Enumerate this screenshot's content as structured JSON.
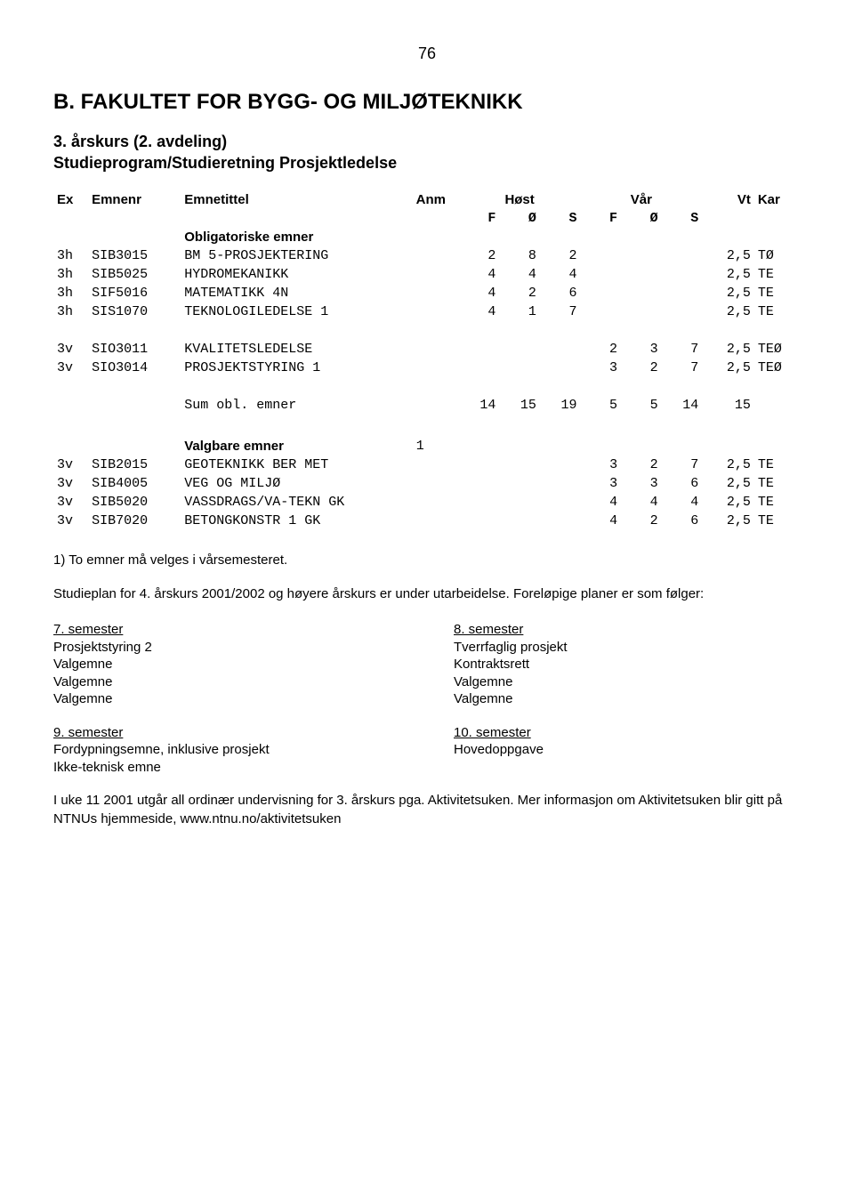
{
  "page_number": "76",
  "heading": "B. FAKULTET FOR BYGG- OG MILJØTEKNIKK",
  "subheading": "3. årskurs (2. avdeling)",
  "program": "Studieprogram/Studieretning Prosjektledelse",
  "columns": {
    "ex": "Ex",
    "emnenr": "Emnenr",
    "emnetittel": "Emnetittel",
    "anm": "Anm",
    "host": "Høst",
    "var": "Vår",
    "f": "F",
    "o": "Ø",
    "s": "S",
    "vt": "Vt",
    "kar": "Kar"
  },
  "sections": {
    "oblig": "Obligatoriske emner",
    "valgbare": "Valgbare emner"
  },
  "oblig_rows": [
    {
      "lvl": "3h",
      "code": "SIB3015",
      "title": "BM 5-PROSJEKTERING",
      "anm": "",
      "hf": "2",
      "ho": "8",
      "hs": "2",
      "vf": "",
      "vo": "",
      "vs": "",
      "vt": "2,5",
      "kar": "TØ"
    },
    {
      "lvl": "3h",
      "code": "SIB5025",
      "title": "HYDROMEKANIKK",
      "anm": "",
      "hf": "4",
      "ho": "4",
      "hs": "4",
      "vf": "",
      "vo": "",
      "vs": "",
      "vt": "2,5",
      "kar": "TE"
    },
    {
      "lvl": "3h",
      "code": "SIF5016",
      "title": "MATEMATIKK 4N",
      "anm": "",
      "hf": "4",
      "ho": "2",
      "hs": "6",
      "vf": "",
      "vo": "",
      "vs": "",
      "vt": "2,5",
      "kar": "TE"
    },
    {
      "lvl": "3h",
      "code": "SIS1070",
      "title": "TEKNOLOGILEDELSE 1",
      "anm": "",
      "hf": "4",
      "ho": "1",
      "hs": "7",
      "vf": "",
      "vo": "",
      "vs": "",
      "vt": "2,5",
      "kar": "TE"
    }
  ],
  "oblig_rows2": [
    {
      "lvl": "3v",
      "code": "SIO3011",
      "title": "KVALITETSLEDELSE",
      "anm": "",
      "hf": "",
      "ho": "",
      "hs": "",
      "vf": "2",
      "vo": "3",
      "vs": "7",
      "vt": "2,5",
      "kar": "TEØ"
    },
    {
      "lvl": "3v",
      "code": "SIO3014",
      "title": "PROSJEKTSTYRING 1",
      "anm": "",
      "hf": "",
      "ho": "",
      "hs": "",
      "vf": "3",
      "vo": "2",
      "vs": "7",
      "vt": "2,5",
      "kar": "TEØ"
    }
  ],
  "sum_row": {
    "title": "Sum obl. emner",
    "hf": "14",
    "ho": "15",
    "hs": "19",
    "vf": "5",
    "vo": "5",
    "vs": "14",
    "vt": "15"
  },
  "valgbare_anm": "1",
  "valgbare_rows": [
    {
      "lvl": "3v",
      "code": "SIB2015",
      "title": "GEOTEKNIKK BER MET",
      "anm": "",
      "hf": "",
      "ho": "",
      "hs": "",
      "vf": "3",
      "vo": "2",
      "vs": "7",
      "vt": "2,5",
      "kar": "TE"
    },
    {
      "lvl": "3v",
      "code": "SIB4005",
      "title": "VEG OG MILJØ",
      "anm": "",
      "hf": "",
      "ho": "",
      "hs": "",
      "vf": "3",
      "vo": "3",
      "vs": "6",
      "vt": "2,5",
      "kar": "TE"
    },
    {
      "lvl": "3v",
      "code": "SIB5020",
      "title": "VASSDRAGS/VA-TEKN GK",
      "anm": "",
      "hf": "",
      "ho": "",
      "hs": "",
      "vf": "4",
      "vo": "4",
      "vs": "4",
      "vt": "2,5",
      "kar": "TE"
    },
    {
      "lvl": "3v",
      "code": "SIB7020",
      "title": "BETONGKONSTR 1 GK",
      "anm": "",
      "hf": "",
      "ho": "",
      "hs": "",
      "vf": "4",
      "vo": "2",
      "vs": "6",
      "vt": "2,5",
      "kar": "TE"
    }
  ],
  "note1": "1) To emner må velges i vårsemesteret.",
  "plan_para": "Studieplan for 4. årskurs 2001/2002 og høyere årskurs er under utarbeidelse. Foreløpige planer er som følger:",
  "sem7": {
    "hd": "7. semester",
    "items": [
      "Prosjektstyring 2",
      "Valgemne",
      "Valgemne",
      "Valgemne"
    ]
  },
  "sem8": {
    "hd": "8. semester",
    "items": [
      "Tverrfaglig prosjekt",
      "Kontraktsrett",
      "Valgemne",
      "Valgemne"
    ]
  },
  "sem9": {
    "hd": "9. semester",
    "items": [
      "Fordypningsemne, inklusive prosjekt",
      "Ikke-teknisk emne"
    ]
  },
  "sem10": {
    "hd": "10. semester",
    "items": [
      "Hovedoppgave"
    ]
  },
  "footer_para": "I uke 11 2001 utgår all ordinær undervisning for 3. årskurs pga. Aktivitetsuken. Mer informasjon om Aktivitetsuken blir gitt på NTNUs hjemmeside, www.ntnu.no/aktivitetsuken"
}
